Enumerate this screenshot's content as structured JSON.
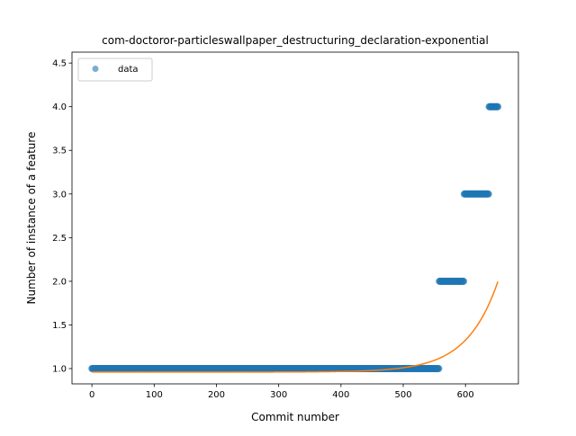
{
  "chart_data": {
    "type": "scatter",
    "title": "com-doctoror-particleswallpaper_destructuring_declaration-exponential",
    "xlabel": "Commit number",
    "ylabel": "Number of instance of a feature",
    "xlim": [
      -32,
      685
    ],
    "ylim": [
      0.825,
      4.625
    ],
    "xticks": [
      0,
      100,
      200,
      300,
      400,
      500,
      600
    ],
    "yticks": [
      1.0,
      1.5,
      2.0,
      2.5,
      3.0,
      3.5,
      4.0,
      4.5
    ],
    "ytick_labels": [
      "1.0",
      "1.5",
      "2.0",
      "2.5",
      "3.0",
      "3.5",
      "4.0",
      "4.5"
    ],
    "grid": false,
    "legend": {
      "placement": "top-left",
      "entries": [
        "data"
      ]
    },
    "series": [
      {
        "name": "data",
        "kind": "points",
        "color": "#1f77b4",
        "alpha": 0.6,
        "segments": [
          {
            "x_start": 0,
            "x_end": 557,
            "y": 1
          },
          {
            "x_start": 558,
            "x_end": 597,
            "y": 2
          },
          {
            "x_start": 598,
            "x_end": 637,
            "y": 3
          },
          {
            "x_start": 638,
            "x_end": 652,
            "y": 4
          }
        ]
      },
      {
        "kind": "fit-line",
        "color": "#ff7f0e",
        "model": "exponential",
        "params": {
          "a": 0.96,
          "b": 2.25e-06,
          "c": 0.02
        },
        "x_range": [
          0,
          652
        ]
      }
    ]
  }
}
